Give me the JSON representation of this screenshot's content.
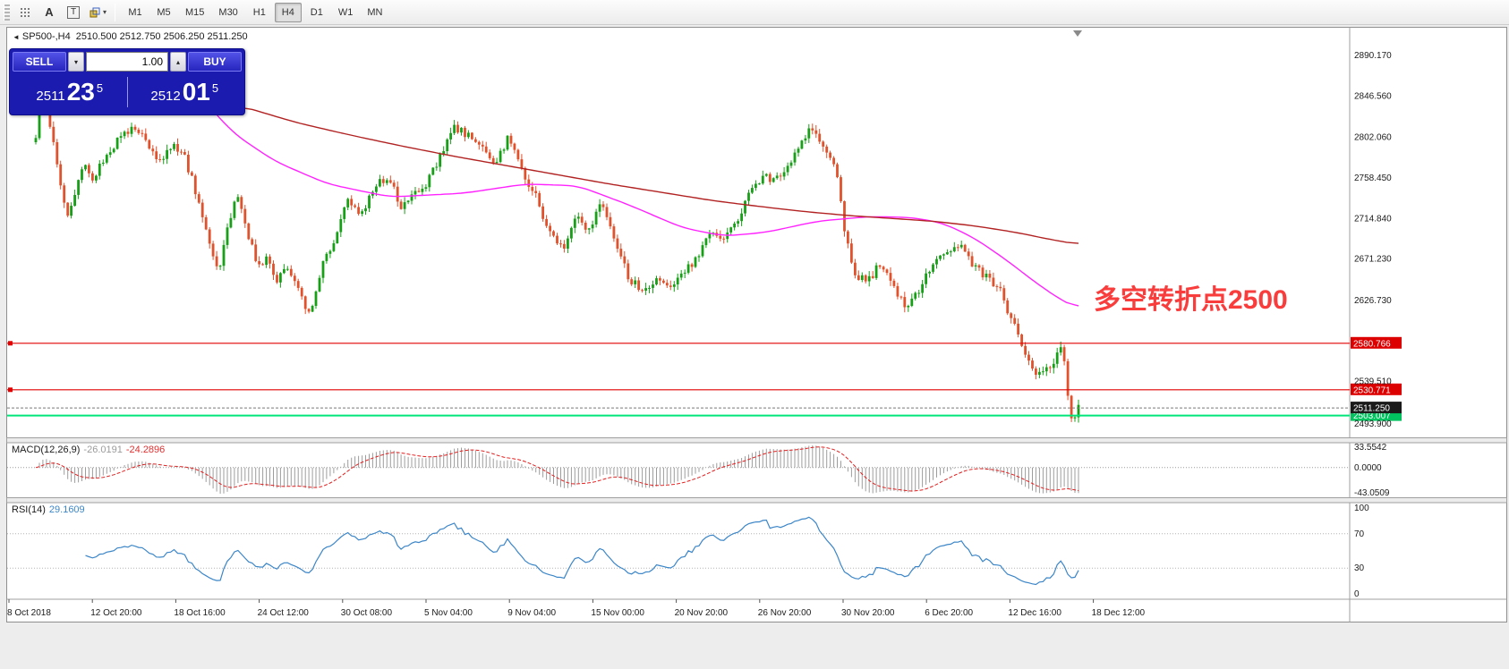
{
  "toolbar": {
    "text_tool": "A",
    "label_tool": "T",
    "timeframes": [
      {
        "label": "M1",
        "active": false
      },
      {
        "label": "M5",
        "active": false
      },
      {
        "label": "M15",
        "active": false
      },
      {
        "label": "M30",
        "active": false
      },
      {
        "label": "H1",
        "active": false
      },
      {
        "label": "H4",
        "active": true
      },
      {
        "label": "D1",
        "active": false
      },
      {
        "label": "W1",
        "active": false
      },
      {
        "label": "MN",
        "active": false
      }
    ]
  },
  "icons": {
    "dropdown": "▾",
    "spin_up": "▴",
    "spin_down": "▾",
    "title_marker": "◄"
  },
  "trade_panel": {
    "sell_label": "SELL",
    "buy_label": "BUY",
    "volume": "1.00",
    "bid": {
      "prefix": "2511",
      "big": "23",
      "sup": "5"
    },
    "ask": {
      "prefix": "2512",
      "big": "01",
      "sup": "5"
    }
  },
  "chart": {
    "title": "SP500-,H4",
    "ohlc": "2510.500 2512.750 2506.250 2511.250",
    "annotation": "多空转折点2500",
    "annotation_color": "#f93c3c"
  },
  "macd": {
    "label": "MACD(12,26,9)",
    "value_main": "-26.0191",
    "value_signal": "-24.2896",
    "axis": [
      "33.5542",
      "0.0000",
      "-43.0509"
    ]
  },
  "rsi": {
    "label": "RSI(14)",
    "value": "29.1609",
    "levels": [
      100,
      70,
      30,
      0
    ]
  },
  "price_axis": {
    "ticks": [
      "2890.170",
      "2846.560",
      "2802.060",
      "2758.450",
      "2714.840",
      "2671.230",
      "2626.730",
      "2539.510",
      "2493.900"
    ],
    "current": {
      "value": "2511.250",
      "bg": "#1a1a1a"
    },
    "lines": [
      {
        "value": "2580.766",
        "price": 2580.766,
        "color": "#e00000",
        "badge": "#dd0000",
        "type": "resistance"
      },
      {
        "value": "2530.771",
        "price": 2530.771,
        "color": "#e00000",
        "badge": "#dd0000",
        "type": "resistance"
      },
      {
        "value": "2503.007",
        "price": 2503.007,
        "color": "#00e57a",
        "badge": "#00c25e",
        "type": "support"
      }
    ]
  },
  "time_axis": {
    "labels": [
      "8 Oct 2018",
      "12 Oct 20:00",
      "18 Oct 16:00",
      "24 Oct 12:00",
      "30 Oct 08:00",
      "5 Nov 04:00",
      "9 Nov 04:00",
      "15 Nov 00:00",
      "20 Nov 20:00",
      "26 Nov 20:00",
      "30 Nov 20:00",
      "6 Dec 20:00",
      "12 Dec 16:00",
      "18 Dec 12:00"
    ]
  },
  "chart_data": {
    "type": "candlestick",
    "symbol": "SP500-",
    "timeframe": "H4",
    "title": "SP500-,H4",
    "open": 2510.5,
    "high": 2512.75,
    "low": 2506.25,
    "close": 2511.25,
    "current_bid": 2511.235,
    "current_ask": 2512.015,
    "ylim": [
      2487,
      2918
    ],
    "candles_count": 295,
    "up_color": "#17a017",
    "down_color": "#e0512c",
    "ma_fast_color": "#ff22ff",
    "ma_slow_color": "#b22222",
    "macd_hist_color": "#9c9c9c",
    "macd_signal_color": "#e02020",
    "rsi_color": "#3c86c8",
    "hlines": [
      2580.766,
      2530.771,
      2503.007
    ],
    "macd_range": [
      -43.0509,
      33.5542
    ],
    "rsi_value": 29.1609,
    "price_path": [
      [
        0.0,
        2798
      ],
      [
        0.004,
        2882
      ],
      [
        0.012,
        2826
      ],
      [
        0.021,
        2766
      ],
      [
        0.03,
        2718
      ],
      [
        0.038,
        2742
      ],
      [
        0.046,
        2772
      ],
      [
        0.055,
        2752
      ],
      [
        0.065,
        2780
      ],
      [
        0.08,
        2800
      ],
      [
        0.094,
        2816
      ],
      [
        0.106,
        2797
      ],
      [
        0.119,
        2778
      ],
      [
        0.131,
        2796
      ],
      [
        0.141,
        2786
      ],
      [
        0.15,
        2756
      ],
      [
        0.163,
        2706
      ],
      [
        0.175,
        2656
      ],
      [
        0.184,
        2704
      ],
      [
        0.193,
        2740
      ],
      [
        0.202,
        2701
      ],
      [
        0.214,
        2661
      ],
      [
        0.222,
        2679
      ],
      [
        0.231,
        2646
      ],
      [
        0.24,
        2665
      ],
      [
        0.252,
        2641
      ],
      [
        0.263,
        2609
      ],
      [
        0.274,
        2664
      ],
      [
        0.287,
        2695
      ],
      [
        0.299,
        2736
      ],
      [
        0.312,
        2721
      ],
      [
        0.325,
        2749
      ],
      [
        0.338,
        2761
      ],
      [
        0.351,
        2726
      ],
      [
        0.364,
        2741
      ],
      [
        0.377,
        2756
      ],
      [
        0.389,
        2786
      ],
      [
        0.402,
        2813
      ],
      [
        0.415,
        2804
      ],
      [
        0.428,
        2791
      ],
      [
        0.441,
        2776
      ],
      [
        0.453,
        2801
      ],
      [
        0.466,
        2766
      ],
      [
        0.479,
        2741
      ],
      [
        0.492,
        2701
      ],
      [
        0.505,
        2681
      ],
      [
        0.518,
        2716
      ],
      [
        0.53,
        2701
      ],
      [
        0.543,
        2731
      ],
      [
        0.556,
        2691
      ],
      [
        0.569,
        2651
      ],
      [
        0.582,
        2636
      ],
      [
        0.595,
        2651
      ],
      [
        0.608,
        2644
      ],
      [
        0.621,
        2656
      ],
      [
        0.634,
        2671
      ],
      [
        0.646,
        2701
      ],
      [
        0.659,
        2696
      ],
      [
        0.672,
        2711
      ],
      [
        0.685,
        2746
      ],
      [
        0.698,
        2761
      ],
      [
        0.71,
        2756
      ],
      [
        0.723,
        2776
      ],
      [
        0.736,
        2801
      ],
      [
        0.746,
        2814
      ],
      [
        0.758,
        2786
      ],
      [
        0.767,
        2771
      ],
      [
        0.776,
        2701
      ],
      [
        0.784,
        2656
      ],
      [
        0.797,
        2646
      ],
      [
        0.81,
        2666
      ],
      [
        0.822,
        2641
      ],
      [
        0.835,
        2621
      ],
      [
        0.848,
        2641
      ],
      [
        0.861,
        2666
      ],
      [
        0.874,
        2681
      ],
      [
        0.886,
        2686
      ],
      [
        0.899,
        2666
      ],
      [
        0.912,
        2651
      ],
      [
        0.925,
        2636
      ],
      [
        0.938,
        2601
      ],
      [
        0.951,
        2561
      ],
      [
        0.96,
        2546
      ],
      [
        0.968,
        2551
      ],
      [
        0.977,
        2561
      ],
      [
        0.985,
        2581
      ],
      [
        0.992,
        2496
      ],
      [
        1.0,
        2511
      ]
    ],
    "ma_fast": [
      [
        0.148,
        2858
      ],
      [
        0.19,
        2806
      ],
      [
        0.23,
        2776
      ],
      [
        0.28,
        2752
      ],
      [
        0.34,
        2738
      ],
      [
        0.41,
        2742
      ],
      [
        0.47,
        2752
      ],
      [
        0.52,
        2750
      ],
      [
        0.57,
        2729
      ],
      [
        0.62,
        2705
      ],
      [
        0.66,
        2696
      ],
      [
        0.7,
        2700
      ],
      [
        0.75,
        2712
      ],
      [
        0.8,
        2717
      ],
      [
        0.84,
        2716
      ],
      [
        0.87,
        2710
      ],
      [
        0.9,
        2694
      ],
      [
        0.93,
        2671
      ],
      [
        0.96,
        2645
      ],
      [
        0.985,
        2626
      ],
      [
        1.0,
        2618
      ]
    ],
    "ma_slow": [
      [
        0.196,
        2836
      ],
      [
        0.25,
        2818
      ],
      [
        0.3,
        2805
      ],
      [
        0.35,
        2793
      ],
      [
        0.4,
        2782
      ],
      [
        0.45,
        2772
      ],
      [
        0.5,
        2762
      ],
      [
        0.55,
        2752
      ],
      [
        0.6,
        2743
      ],
      [
        0.65,
        2734
      ],
      [
        0.7,
        2727
      ],
      [
        0.74,
        2722
      ],
      [
        0.78,
        2718
      ],
      [
        0.82,
        2715
      ],
      [
        0.86,
        2712
      ],
      [
        0.9,
        2707
      ],
      [
        0.94,
        2700
      ],
      [
        0.97,
        2693
      ],
      [
        1.0,
        2687
      ]
    ]
  }
}
